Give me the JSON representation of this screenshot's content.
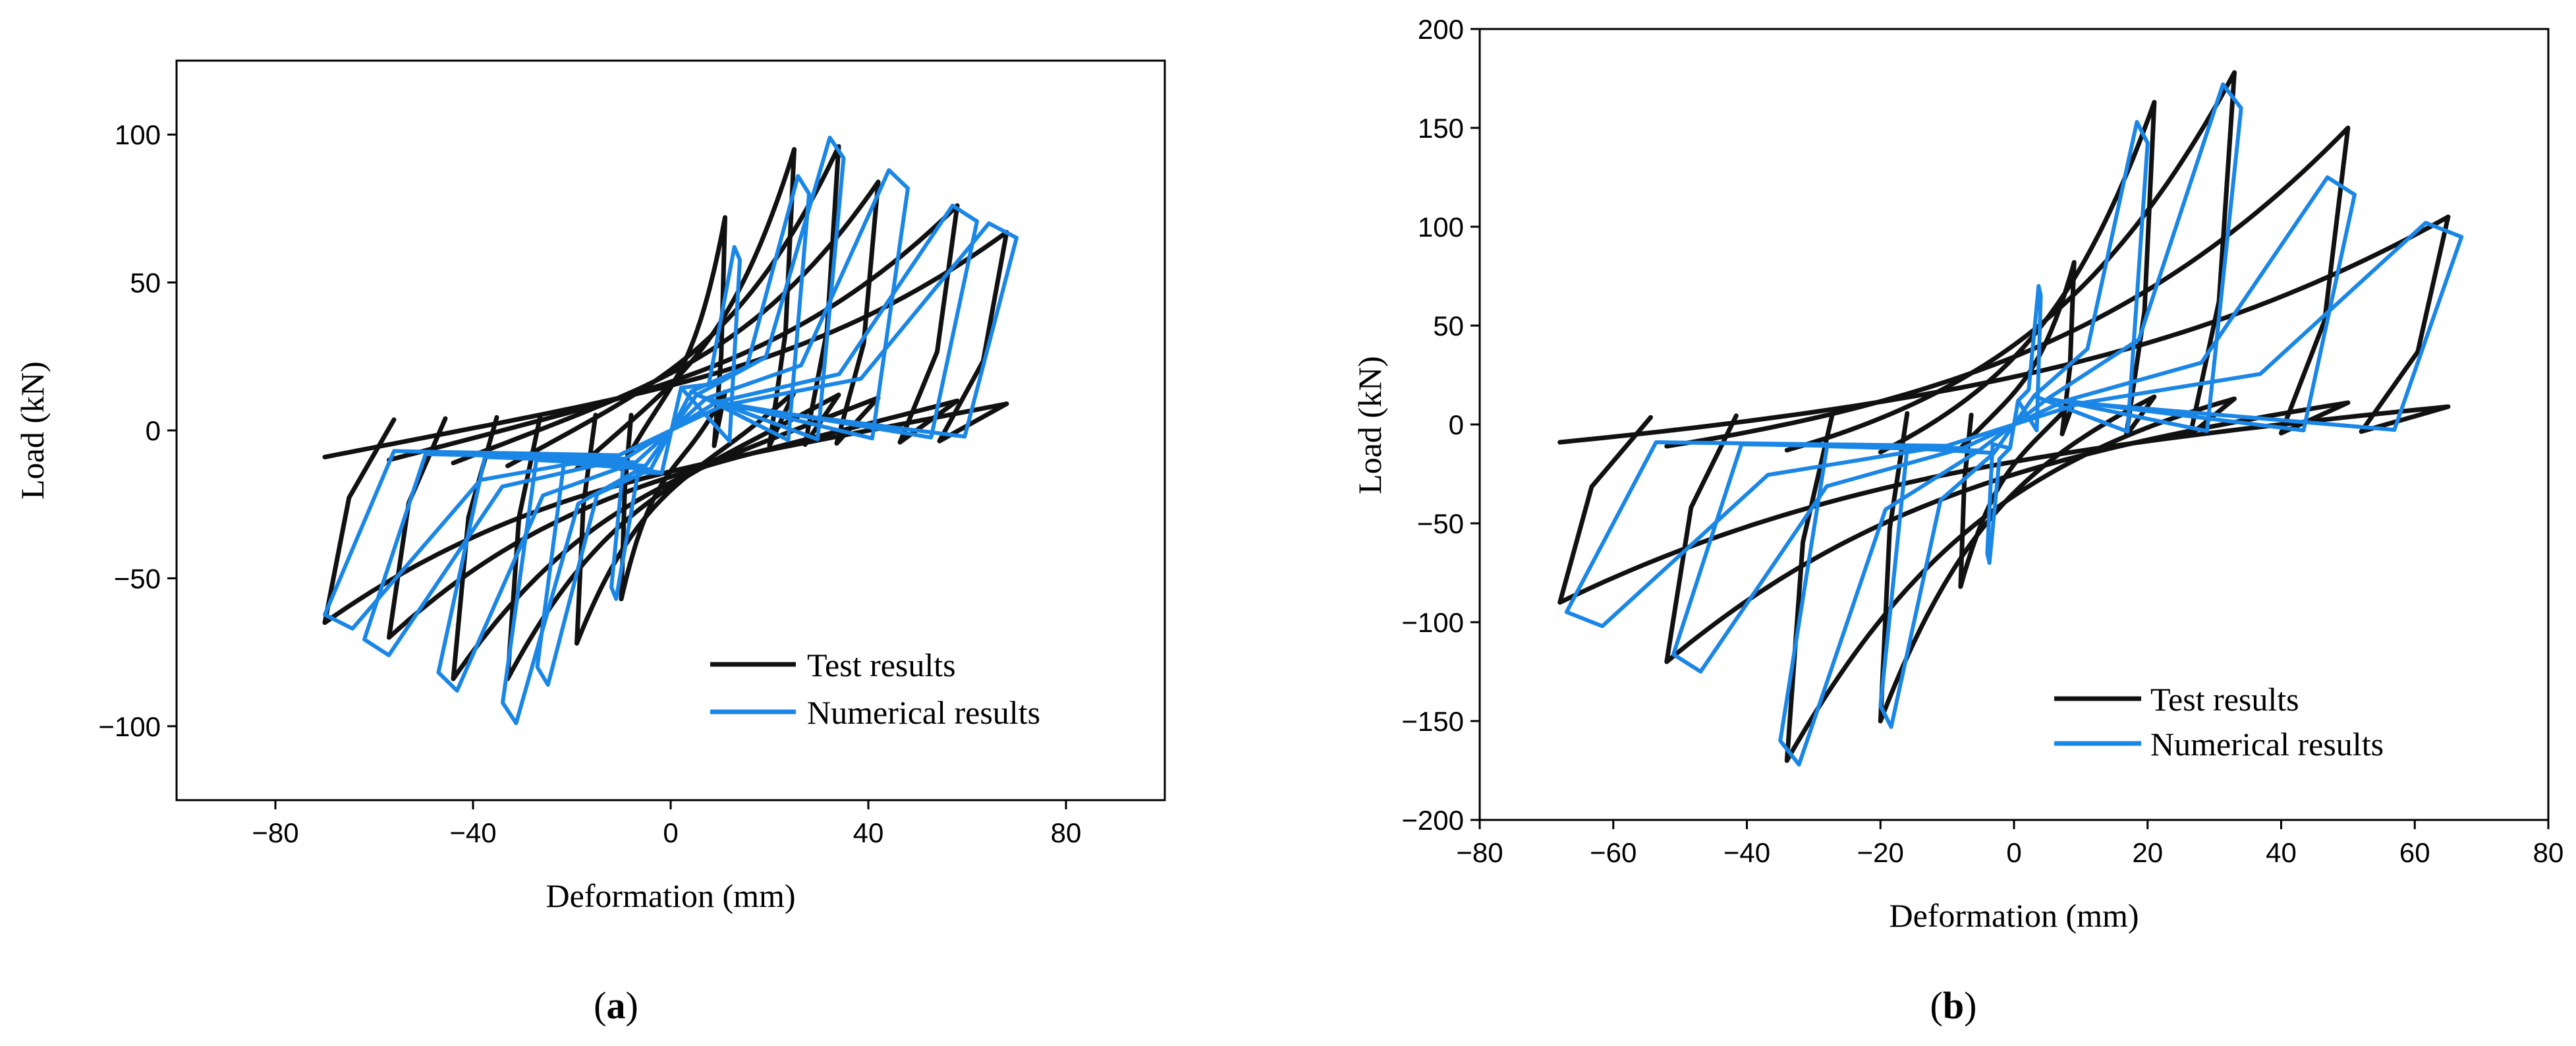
{
  "chart_data": [
    {
      "panel": "a",
      "type": "line",
      "panel_label": "a",
      "xlabel": "Deformation (mm)",
      "ylabel": "Load (kN)",
      "xlim": [
        -100,
        100
      ],
      "ylim": [
        -125,
        125
      ],
      "xticks": [
        -80,
        -40,
        0,
        40,
        80
      ],
      "yticks": [
        -100,
        -50,
        0,
        50,
        100
      ],
      "legend_placement": "bottom-right",
      "colors": {
        "test": "#111111",
        "numerical": "#1a86e6"
      },
      "series": [
        {
          "name": "Test results",
          "loops": [
            {
              "dmax": 11,
              "pmax": 72,
              "dmin": -10,
              "pmin": -57,
              "r": 13
            },
            {
              "dmax": 25,
              "pmax": 95,
              "dmin": -19,
              "pmin": -72,
              "r": 13
            },
            {
              "dmax": 34,
              "pmax": 96,
              "dmin": -33,
              "pmin": -84,
              "r": 12
            },
            {
              "dmax": 42,
              "pmax": 84,
              "dmin": -44,
              "pmin": -84,
              "r": 11
            },
            {
              "dmax": 58,
              "pmax": 76,
              "dmin": -57,
              "pmin": -70,
              "r": 10
            },
            {
              "dmax": 68,
              "pmax": 67,
              "dmin": -70,
              "pmin": -65,
              "r": 9
            }
          ]
        },
        {
          "name": "Numerical results",
          "loops": [
            {
              "dmax": 14,
              "pmax": 62,
              "dmin": -12,
              "pmin": -57,
              "r": 12
            },
            {
              "dmax": 28,
              "pmax": 86,
              "dmin": -27,
              "pmin": -86,
              "r": 11
            },
            {
              "dmax": 35,
              "pmax": 99,
              "dmin": -34,
              "pmin": -99,
              "r": 10
            },
            {
              "dmax": 48,
              "pmax": 88,
              "dmin": -47,
              "pmin": -88,
              "r": 9
            },
            {
              "dmax": 62,
              "pmax": 76,
              "dmin": -62,
              "pmin": -76,
              "r": 8
            },
            {
              "dmax": 70,
              "pmax": 70,
              "dmin": -70,
              "pmin": -67,
              "r": 7
            }
          ]
        }
      ]
    },
    {
      "panel": "b",
      "type": "line",
      "panel_label": "b",
      "xlabel": "Deformation (mm)",
      "ylabel": "Load (kN)",
      "xlim": [
        -80,
        80
      ],
      "ylim": [
        -200,
        200
      ],
      "xticks": [
        -80,
        -60,
        -40,
        -20,
        0,
        20,
        40,
        60,
        80
      ],
      "yticks": [
        -200,
        -150,
        -100,
        -50,
        0,
        50,
        100,
        150,
        200
      ],
      "legend_placement": "bottom-right",
      "colors": {
        "test": "#111111",
        "numerical": "#1a86e6"
      },
      "series": [
        {
          "name": "Test results",
          "loops": [
            {
              "dmax": 9,
              "pmax": 82,
              "dmin": -8,
              "pmin": -82,
              "r": 12
            },
            {
              "dmax": 21,
              "pmax": 163,
              "dmin": -20,
              "pmin": -150,
              "r": 14
            },
            {
              "dmax": 33,
              "pmax": 178,
              "dmin": -34,
              "pmin": -170,
              "r": 13
            },
            {
              "dmax": 50,
              "pmax": 150,
              "dmin": -52,
              "pmin": -120,
              "r": 11
            },
            {
              "dmax": 65,
              "pmax": 105,
              "dmin": -68,
              "pmin": -90,
              "r": 9
            }
          ]
        },
        {
          "name": "Numerical results",
          "loops": [
            {
              "dmax": 4,
              "pmax": 70,
              "dmin": -4,
              "pmin": -70,
              "r": 10
            },
            {
              "dmax": 20,
              "pmax": 153,
              "dmin": -20,
              "pmin": -153,
              "r": 12
            },
            {
              "dmax": 34,
              "pmax": 172,
              "dmin": -35,
              "pmin": -172,
              "r": 11
            },
            {
              "dmax": 51,
              "pmax": 125,
              "dmin": -51,
              "pmin": -125,
              "r": 10
            },
            {
              "dmax": 67,
              "pmax": 102,
              "dmin": -67,
              "pmin": -102,
              "r": 9
            }
          ]
        }
      ]
    }
  ]
}
